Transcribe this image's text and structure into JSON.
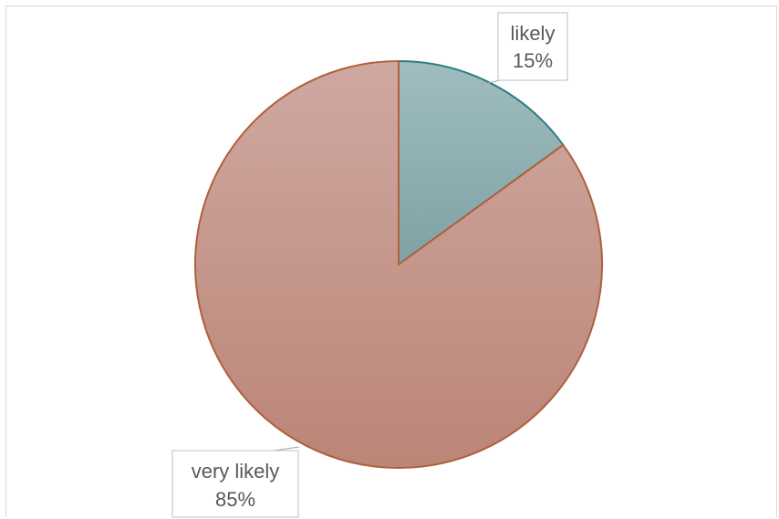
{
  "chart_data": {
    "type": "pie",
    "slices": [
      {
        "label": "likely",
        "value": 15,
        "display": "15%",
        "color": "#8fb0b3",
        "stroke": "#2f7d80"
      },
      {
        "label": "very likely",
        "value": 85,
        "display": "85%",
        "color": "#c4968e",
        "stroke": "#b0603c"
      }
    ],
    "start_angle_deg": 0,
    "direction": "clockwise",
    "legend": "none",
    "data_labels": "callouts"
  }
}
